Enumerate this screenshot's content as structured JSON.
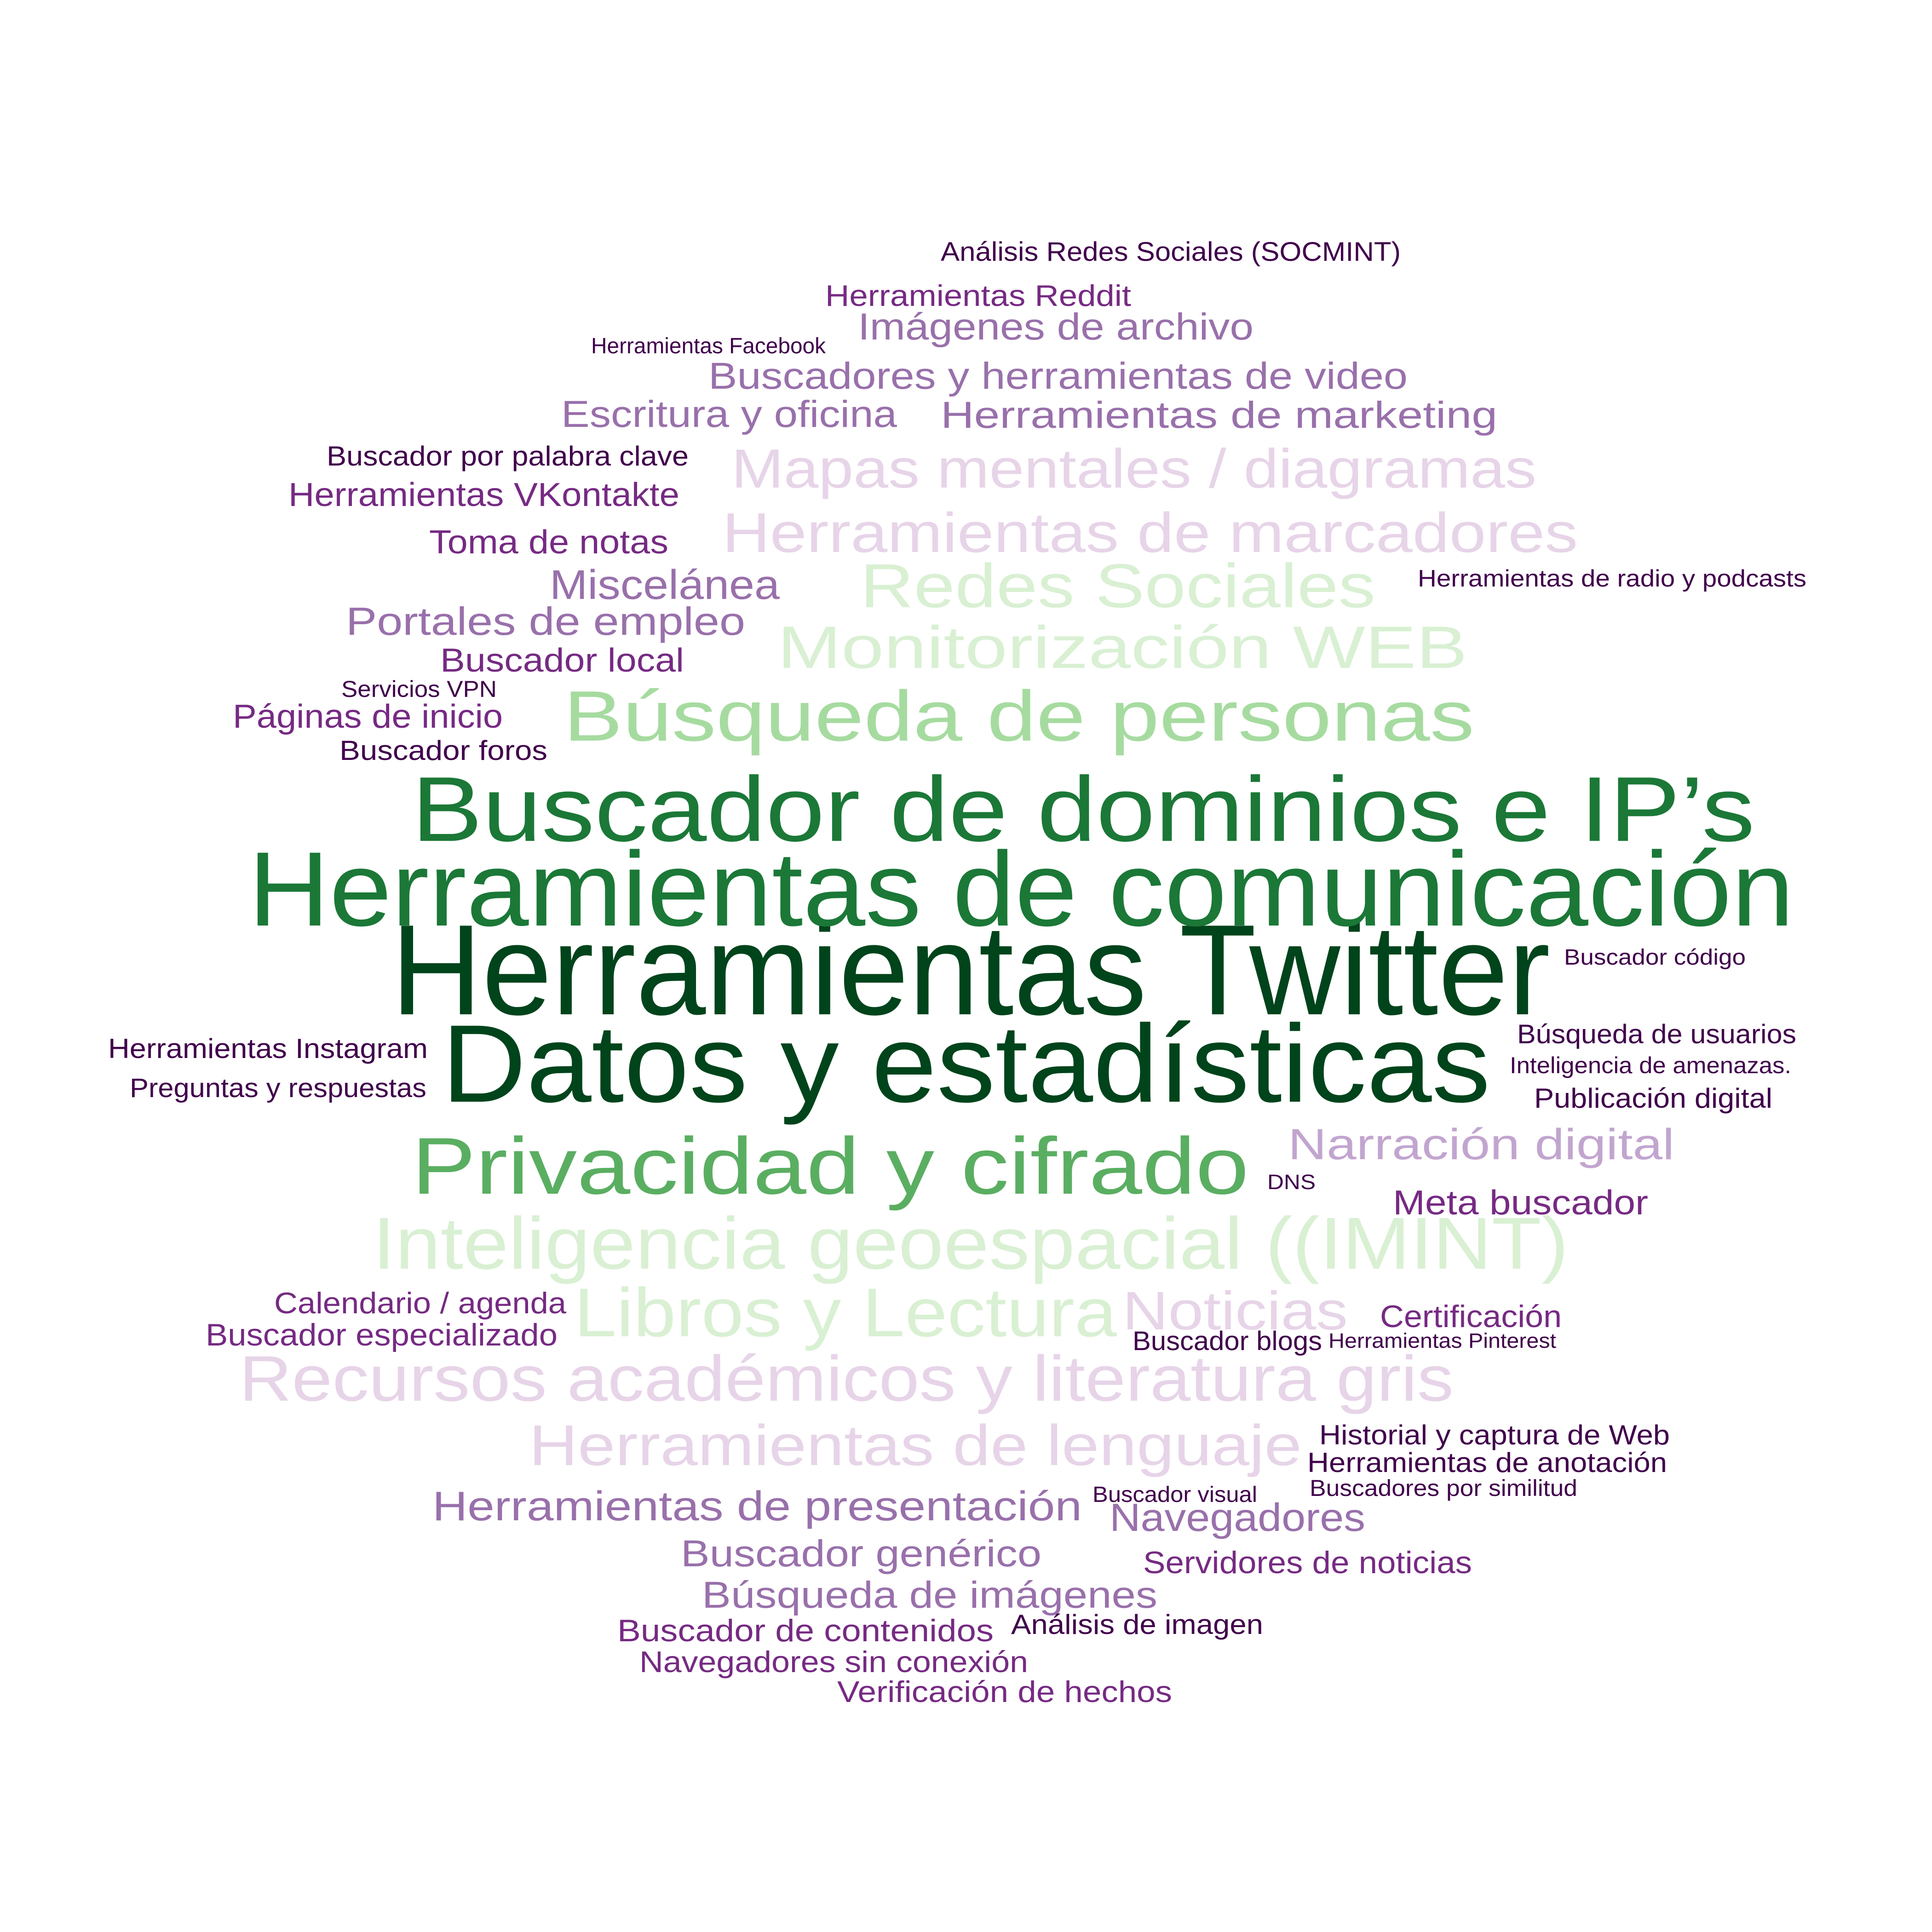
{
  "palette": {
    "dark_green": "#00441b",
    "green_2": "#1b7837",
    "green_3": "#5aae61",
    "green_4": "#a6dba0",
    "green_5": "#d9f0d3",
    "purple_5": "#e7d4e8",
    "purple_4": "#c2a5cf",
    "purple_3": "#9970ab",
    "purple_2": "#762a83",
    "dark_purple": "#40004b"
  },
  "words": [
    {
      "text": "Herramientas Twitter",
      "color": "#00441b"
    },
    {
      "text": "Datos y estadísticas",
      "color": "#00441b"
    },
    {
      "text": "Herramientas de comunicación",
      "color": "#1b7837"
    },
    {
      "text": "Buscador de dominios e IP’s",
      "color": "#1b7837"
    },
    {
      "text": "Privacidad y cifrado",
      "color": "#5aae61"
    },
    {
      "text": "Búsqueda de personas",
      "color": "#a6dba0"
    },
    {
      "text": "Monitorización WEB",
      "color": "#d9f0d3"
    },
    {
      "text": "Redes Sociales",
      "color": "#d9f0d3"
    },
    {
      "text": "Inteligencia geoespacial ((IMINT)",
      "color": "#d9f0d3"
    },
    {
      "text": "Libros y Lectura",
      "color": "#d9f0d3"
    },
    {
      "text": "Herramientas de marcadores",
      "color": "#e7d4e8"
    },
    {
      "text": "Mapas mentales / diagramas",
      "color": "#e7d4e8"
    },
    {
      "text": "Recursos académicos y literatura gris",
      "color": "#e7d4e8"
    },
    {
      "text": "Herramientas de lenguaje",
      "color": "#e7d4e8"
    },
    {
      "text": "Noticias",
      "color": "#e7d4e8"
    },
    {
      "text": "Narración digital",
      "color": "#c2a5cf"
    },
    {
      "text": "Imágenes de archivo",
      "color": "#9970ab"
    },
    {
      "text": "Buscadores y herramientas de video",
      "color": "#9970ab"
    },
    {
      "text": "Escritura y oficina",
      "color": "#9970ab"
    },
    {
      "text": "Herramientas de marketing",
      "color": "#9970ab"
    },
    {
      "text": "Miscelánea",
      "color": "#9970ab"
    },
    {
      "text": "Portales de empleo",
      "color": "#9970ab"
    },
    {
      "text": "Herramientas de presentación",
      "color": "#9970ab"
    },
    {
      "text": "Navegadores",
      "color": "#9970ab"
    },
    {
      "text": "Buscador genérico",
      "color": "#9970ab"
    },
    {
      "text": "Búsqueda de imágenes",
      "color": "#9970ab"
    },
    {
      "text": "Herramientas Reddit",
      "color": "#762a83"
    },
    {
      "text": "Herramientas VKontakte",
      "color": "#762a83"
    },
    {
      "text": "Toma de notas",
      "color": "#762a83"
    },
    {
      "text": "Buscador local",
      "color": "#762a83"
    },
    {
      "text": "Páginas de inicio",
      "color": "#762a83"
    },
    {
      "text": "Meta buscador",
      "color": "#762a83"
    },
    {
      "text": "Calendario / agenda",
      "color": "#762a83"
    },
    {
      "text": "Buscador especializado",
      "color": "#762a83"
    },
    {
      "text": "Certificación",
      "color": "#762a83"
    },
    {
      "text": "Servidores de noticias",
      "color": "#762a83"
    },
    {
      "text": "Buscador de contenidos",
      "color": "#762a83"
    },
    {
      "text": "Navegadores sin conexión",
      "color": "#762a83"
    },
    {
      "text": "Verificación de hechos",
      "color": "#762a83"
    },
    {
      "text": "Análisis Redes Sociales (SOCMINT)",
      "color": "#40004b"
    },
    {
      "text": "Herramientas Facebook",
      "color": "#40004b"
    },
    {
      "text": "Buscador por palabra clave",
      "color": "#40004b"
    },
    {
      "text": "Herramientas de radio y podcasts",
      "color": "#40004b"
    },
    {
      "text": "Servicios VPN",
      "color": "#40004b"
    },
    {
      "text": "Buscador foros",
      "color": "#40004b"
    },
    {
      "text": "Buscador código",
      "color": "#40004b"
    },
    {
      "text": "Herramientas Instagram",
      "color": "#40004b"
    },
    {
      "text": "Preguntas y respuestas",
      "color": "#40004b"
    },
    {
      "text": "Búsqueda de usuarios",
      "color": "#40004b"
    },
    {
      "text": "Inteligencia de amenazas.",
      "color": "#40004b"
    },
    {
      "text": "Publicación digital",
      "color": "#40004b"
    },
    {
      "text": "DNS",
      "color": "#40004b"
    },
    {
      "text": "Buscador blogs",
      "color": "#40004b"
    },
    {
      "text": "Herramientas Pinterest",
      "color": "#40004b"
    },
    {
      "text": "Historial y captura de Web",
      "color": "#40004b"
    },
    {
      "text": "Herramientas de anotación",
      "color": "#40004b"
    },
    {
      "text": "Buscadores por similitud",
      "color": "#40004b"
    },
    {
      "text": "Buscador visual",
      "color": "#40004b"
    },
    {
      "text": "Análisis de imagen",
      "color": "#40004b"
    }
  ]
}
